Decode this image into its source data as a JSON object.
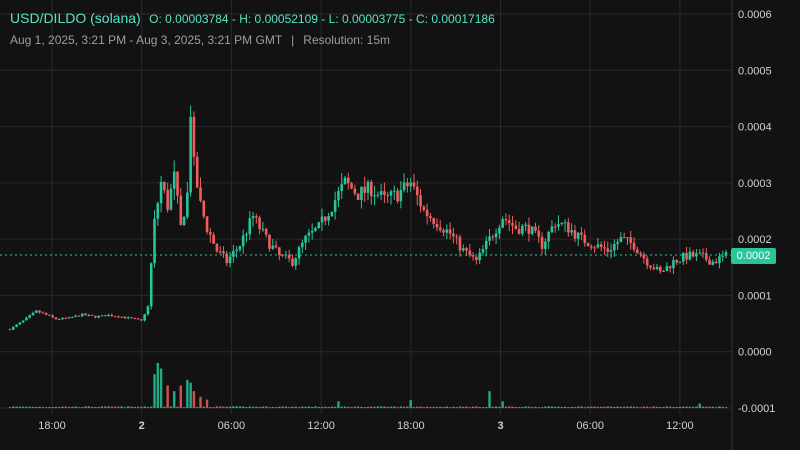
{
  "header": {
    "title": "USD/DILDO (solana)",
    "ohlc": "O: 0.00003784 - H: 0.00052109 - L: 0.00003775 - C: 0.00017186",
    "range": "Aug 1, 2025, 3:21 PM - Aug 3, 2025, 3:21 PM GMT",
    "separator": "|",
    "resolution": "Resolution: 15m"
  },
  "price_tag": "0.0002",
  "colors": {
    "up": "#26c59a",
    "down": "#ef5e5e",
    "accent": "#59e3c4",
    "grid": "#2a2a2a",
    "background": "#121212"
  },
  "chart_data": {
    "type": "candlestick",
    "ylim": [
      -0.0001,
      0.0006
    ],
    "y_ticks": [
      "0.0006",
      "0.0005",
      "0.0004",
      "0.0003",
      "0.0002",
      "0.0001",
      "0.0000",
      "-0.0001"
    ],
    "x_ticks": [
      "18:00",
      "2",
      "06:00",
      "12:00",
      "18:00",
      "3",
      "06:00",
      "12:00"
    ],
    "last_price": 0.00017186,
    "grid": true,
    "x_start": "Aug 1, 2025, 3:21 PM",
    "x_end": "Aug 3, 2025, 3:21 PM",
    "interval": "15m",
    "price_path": [
      [
        0,
        4e-05
      ],
      [
        4,
        5.5e-05
      ],
      [
        8,
        7.2e-05
      ],
      [
        10,
        6.8e-05
      ],
      [
        14,
        5.8e-05
      ],
      [
        18,
        6e-05
      ],
      [
        22,
        6.6e-05
      ],
      [
        26,
        6.2e-05
      ],
      [
        30,
        6.5e-05
      ],
      [
        34,
        6.2e-05
      ],
      [
        38,
        5.8e-05
      ],
      [
        40,
        5.5e-05
      ],
      [
        42,
        8e-05
      ],
      [
        44,
        0.00023
      ],
      [
        46,
        0.0003
      ],
      [
        48,
        0.00026
      ],
      [
        50,
        0.00031
      ],
      [
        52,
        0.00022
      ],
      [
        54,
        0.00028
      ],
      [
        55,
        0.00043
      ],
      [
        56,
        0.00033
      ],
      [
        58,
        0.00026
      ],
      [
        60,
        0.00022
      ],
      [
        63,
        0.00018
      ],
      [
        66,
        0.00016
      ],
      [
        70,
        0.00019
      ],
      [
        74,
        0.00024
      ],
      [
        78,
        0.0002
      ],
      [
        82,
        0.00017
      ],
      [
        86,
        0.00016
      ],
      [
        90,
        0.0002
      ],
      [
        94,
        0.00022
      ],
      [
        98,
        0.00026
      ],
      [
        102,
        0.0003
      ],
      [
        106,
        0.00028
      ],
      [
        110,
        0.00029
      ],
      [
        114,
        0.00027
      ],
      [
        118,
        0.00028
      ],
      [
        122,
        0.0003
      ],
      [
        126,
        0.00025
      ],
      [
        130,
        0.00023
      ],
      [
        134,
        0.00021
      ],
      [
        138,
        0.00018
      ],
      [
        142,
        0.00016
      ],
      [
        146,
        0.0002
      ],
      [
        150,
        0.00024
      ],
      [
        154,
        0.00022
      ],
      [
        158,
        0.00022
      ],
      [
        162,
        0.00019
      ],
      [
        166,
        0.00023
      ],
      [
        170,
        0.00022
      ],
      [
        174,
        0.0002
      ],
      [
        178,
        0.00019
      ],
      [
        182,
        0.00018
      ],
      [
        186,
        0.0002
      ],
      [
        190,
        0.00019
      ],
      [
        194,
        0.00016
      ],
      [
        198,
        0.00014
      ],
      [
        202,
        0.00016
      ],
      [
        206,
        0.00017
      ],
      [
        210,
        0.00017
      ],
      [
        214,
        0.00016
      ],
      [
        218,
        0.00017
      ]
    ],
    "volume_spikes": [
      [
        44,
        6e-05
      ],
      [
        45,
        8e-05
      ],
      [
        46,
        7e-05
      ],
      [
        48,
        4e-05
      ],
      [
        50,
        3e-05
      ],
      [
        52,
        4e-05
      ],
      [
        54,
        5e-05
      ],
      [
        55,
        4.5e-05
      ],
      [
        56,
        3e-05
      ],
      [
        58,
        2e-05
      ],
      [
        60,
        1.5e-05
      ],
      [
        100,
        1.2e-05
      ],
      [
        122,
        1.4e-05
      ],
      [
        146,
        3e-05
      ],
      [
        150,
        1.2e-05
      ],
      [
        210,
        8e-06
      ]
    ]
  }
}
